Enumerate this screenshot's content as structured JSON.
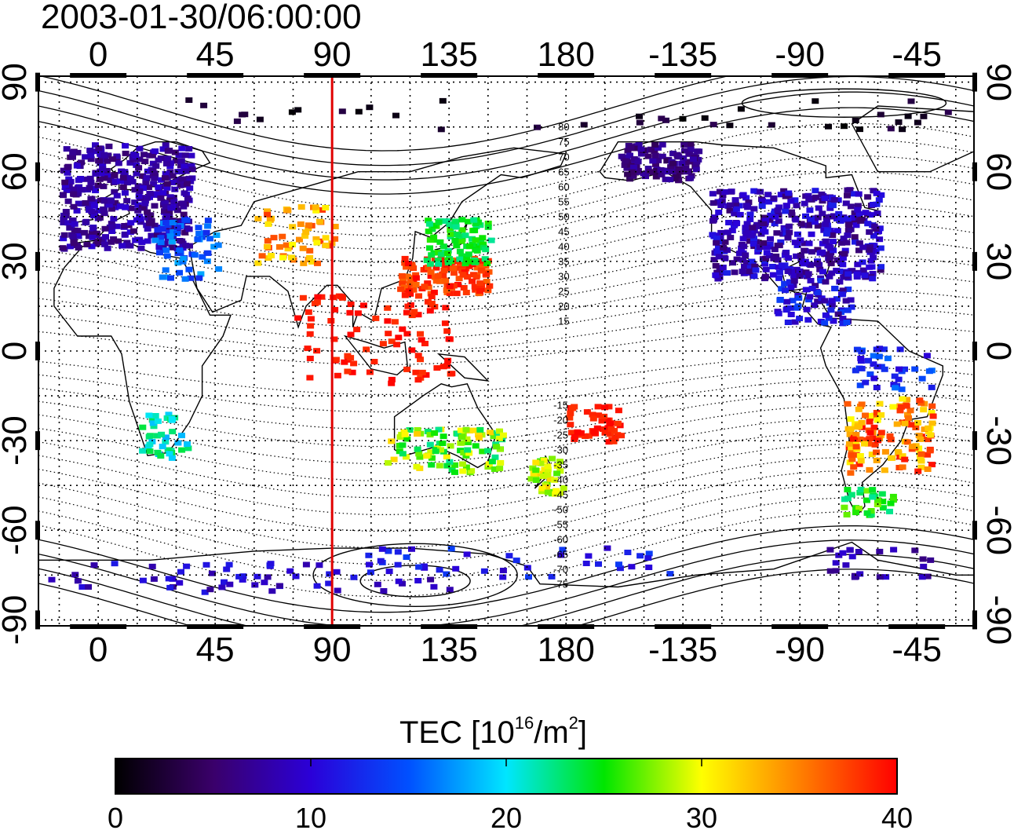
{
  "title": "2003-01-30/06:00:00",
  "map": {
    "lon_ticks": [
      "0",
      "45",
      "90",
      "135",
      "180",
      "-135",
      "-90",
      "-45"
    ],
    "lon_tick_values": [
      0,
      45,
      90,
      135,
      180,
      225,
      270,
      315
    ],
    "lat_ticks": [
      "90",
      "60",
      "30",
      "0",
      "-30",
      "-60",
      "-90"
    ],
    "lat_tick_values": [
      90,
      60,
      30,
      0,
      -30,
      -60,
      -90
    ],
    "lon_range": [
      -23,
      337
    ],
    "lat_range": [
      -92,
      92
    ],
    "grid": true,
    "meridian_marker": {
      "lon": 90,
      "color": "#e00000"
    },
    "contour_labels_north": [
      "80",
      "75",
      "70",
      "65",
      "60",
      "55",
      "50",
      "45",
      "40",
      "35",
      "30",
      "25",
      "20",
      "15"
    ],
    "contour_labels_south": [
      "-15",
      "-20",
      "-25",
      "-30",
      "-35",
      "-40",
      "-45",
      "-50",
      "-55",
      "-60",
      "-65",
      "-70",
      "-75"
    ]
  },
  "colorbar": {
    "label_prefix": "TEC  [10",
    "label_sup1": "16",
    "label_mid": "/m",
    "label_sup2": "2",
    "label_suffix": "]",
    "tick_labels": [
      "0",
      "10",
      "20",
      "30",
      "40"
    ],
    "tick_values": [
      0,
      10,
      20,
      30,
      40
    ],
    "range": [
      0,
      40
    ],
    "colormap": [
      "#000000",
      "#3a006a",
      "#2b00d8",
      "#0050ff",
      "#00e6ff",
      "#00e600",
      "#ffff00",
      "#ff8000",
      "#ff0000"
    ]
  }
}
